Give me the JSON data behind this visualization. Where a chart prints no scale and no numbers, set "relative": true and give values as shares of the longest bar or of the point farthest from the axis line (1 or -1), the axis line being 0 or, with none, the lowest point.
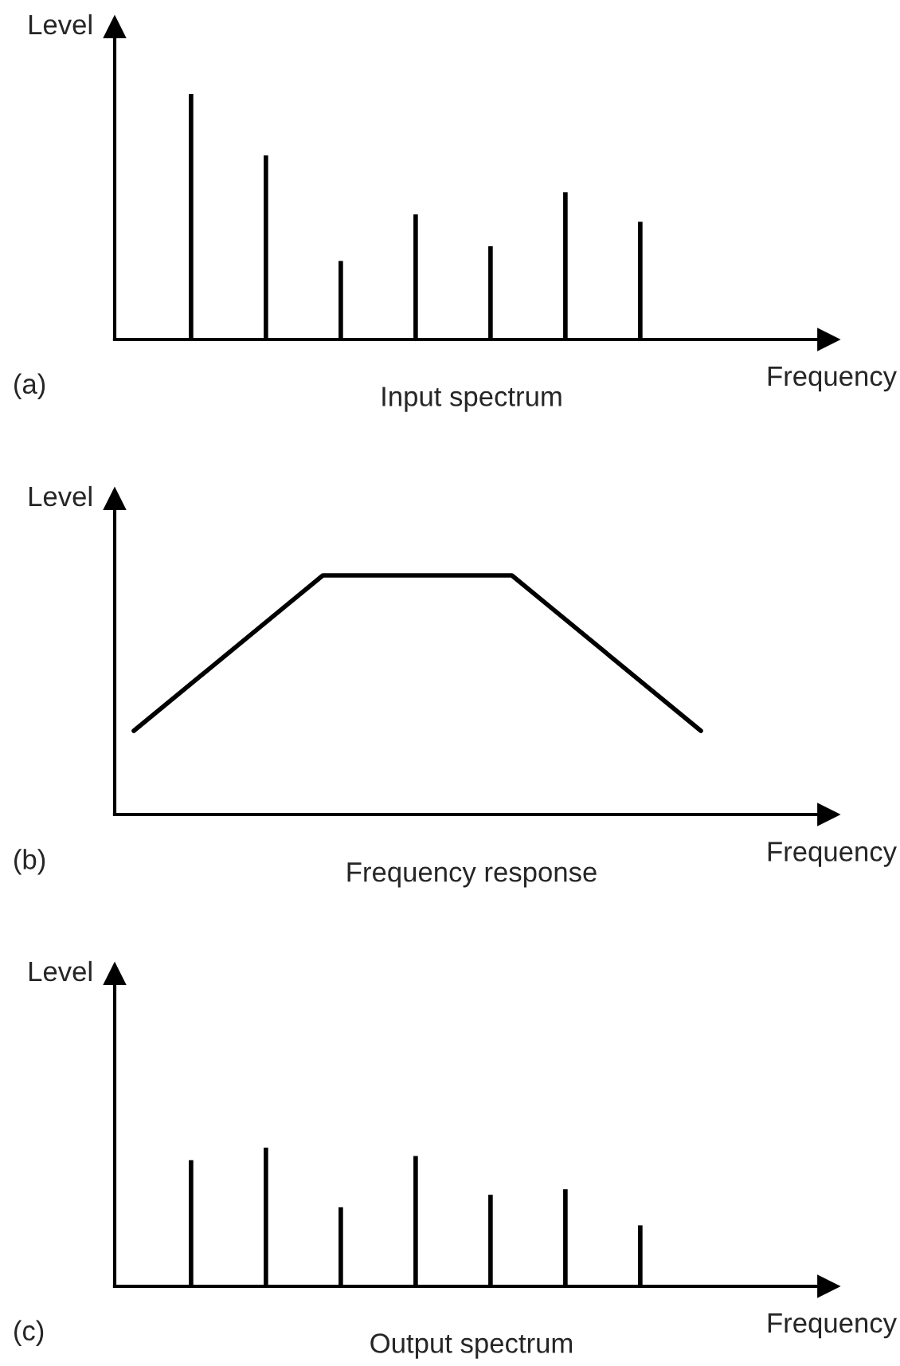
{
  "chart_data": [
    {
      "type": "bar",
      "title": "Input spectrum",
      "xlabel": "Frequency",
      "ylabel": "Level",
      "annotations": [
        "(a)"
      ],
      "relative": true,
      "color": "#000000",
      "categories": [
        null,
        null,
        null,
        null,
        null,
        null,
        null
      ],
      "values": [
        1,
        0.75,
        0.32,
        0.51,
        0.38,
        0.6,
        0.48
      ]
    },
    {
      "type": "line",
      "title": "Frequency response",
      "xlabel": "Frequency",
      "ylabel": "Level",
      "annotations": [
        "(b)"
      ],
      "relative": true,
      "color": "#000000",
      "categories": [
        null,
        null,
        null,
        null
      ],
      "values": [
        0.35,
        1,
        1,
        0.35
      ]
    },
    {
      "type": "bar",
      "title": "Output spectrum",
      "xlabel": "Frequency",
      "ylabel": "Level",
      "annotations": [
        "(c)"
      ],
      "relative": true,
      "color": "#000000",
      "categories": [
        null,
        null,
        null,
        null,
        null,
        null,
        null
      ],
      "values": [
        0.91,
        1,
        0.57,
        0.94,
        0.66,
        0.7,
        0.44
      ]
    }
  ]
}
